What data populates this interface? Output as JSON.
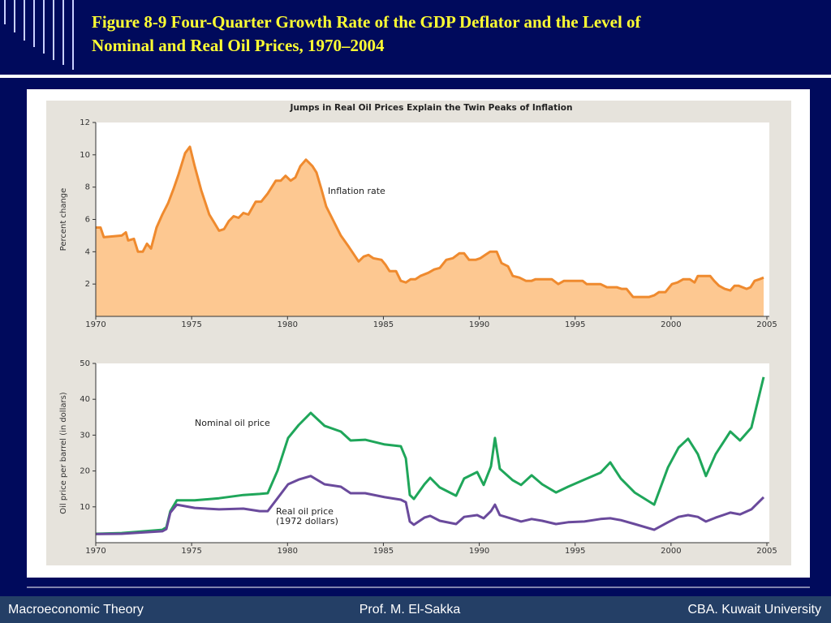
{
  "slide": {
    "title": [
      "Figure 8-9  Four-Quarter Growth Rate of the GDP Deflator and the Level of",
      "Nominal and Real Oil Prices, 1970–2004"
    ],
    "footer": {
      "left": "Macroeconomic Theory",
      "center": "Prof. M. El-Sakka",
      "right": "CBA. Kuwait University"
    }
  },
  "chart_data": [
    {
      "type": "area",
      "title": "Jumps in Real Oil Prices Explain the Twin Peaks of Inflation",
      "y_label": "Percent change",
      "xlim": [
        1970,
        2005
      ],
      "xticks": [
        1970,
        1975,
        1980,
        1985,
        1990,
        1995,
        2000,
        2005
      ],
      "ylim": [
        0,
        12
      ],
      "yticks": [
        2,
        4,
        6,
        8,
        10,
        12
      ],
      "x": [
        1970.0,
        1970.25,
        1970.42,
        1971.35,
        1971.57,
        1971.69,
        1971.99,
        1972.2,
        1972.45,
        1972.67,
        1972.88,
        1973.17,
        1973.47,
        1973.77,
        1974.06,
        1974.32,
        1974.66,
        1974.91,
        1975.16,
        1975.5,
        1975.92,
        1976.18,
        1976.43,
        1976.69,
        1976.94,
        1977.19,
        1977.45,
        1977.7,
        1977.96,
        1978.34,
        1978.63,
        1978.97,
        1979.39,
        1979.65,
        1979.9,
        1980.16,
        1980.41,
        1980.67,
        1980.96,
        1981.3,
        1981.51,
        1981.76,
        1982.02,
        1982.36,
        1982.78,
        1983.2,
        1983.71,
        1983.97,
        1984.22,
        1984.47,
        1984.9,
        1985.11,
        1985.32,
        1985.66,
        1985.91,
        1986.17,
        1986.42,
        1986.67,
        1986.93,
        1987.35,
        1987.65,
        1987.94,
        1988.28,
        1988.62,
        1988.96,
        1989.21,
        1989.47,
        1989.81,
        1990.06,
        1990.31,
        1990.57,
        1990.91,
        1991.16,
        1991.5,
        1991.75,
        1992.09,
        1992.43,
        1992.73,
        1992.94,
        1993.78,
        1994.12,
        1994.42,
        1995.05,
        1995.39,
        1995.6,
        1996.32,
        1996.66,
        1997.17,
        1997.42,
        1997.68,
        1998.02,
        1998.86,
        1999.12,
        1999.37,
        1999.71,
        2000.05,
        2000.34,
        2000.64,
        2000.98,
        2001.23,
        2001.4,
        2001.74,
        2002.04,
        2002.25,
        2002.5,
        2002.8,
        2003.09,
        2003.31,
        2003.52,
        2003.94,
        2004.15,
        2004.36,
        2004.62,
        2004.83
      ],
      "series": [
        {
          "name": "Inflation rate",
          "color": "#ef8a2e",
          "fill": "#fdc891",
          "values": [
            5.5,
            5.5,
            4.9,
            5.0,
            5.2,
            4.7,
            4.8,
            4.0,
            4.0,
            4.5,
            4.2,
            5.5,
            6.3,
            7.0,
            7.9,
            8.8,
            10.1,
            10.5,
            9.3,
            7.8,
            6.3,
            5.8,
            5.3,
            5.4,
            5.9,
            6.2,
            6.1,
            6.4,
            6.3,
            7.1,
            7.1,
            7.6,
            8.4,
            8.4,
            8.7,
            8.4,
            8.6,
            9.3,
            9.7,
            9.3,
            8.9,
            7.9,
            6.8,
            6.0,
            5.0,
            4.3,
            3.4,
            3.7,
            3.8,
            3.6,
            3.5,
            3.2,
            2.8,
            2.8,
            2.2,
            2.1,
            2.3,
            2.3,
            2.5,
            2.7,
            2.9,
            3.0,
            3.5,
            3.6,
            3.9,
            3.9,
            3.5,
            3.5,
            3.6,
            3.8,
            4.0,
            4.0,
            3.3,
            3.1,
            2.5,
            2.4,
            2.2,
            2.2,
            2.3,
            2.3,
            2.0,
            2.2,
            2.2,
            2.2,
            2.0,
            2.0,
            1.8,
            1.8,
            1.7,
            1.7,
            1.2,
            1.2,
            1.3,
            1.5,
            1.5,
            2.0,
            2.1,
            2.3,
            2.3,
            2.1,
            2.5,
            2.5,
            2.5,
            2.2,
            1.9,
            1.7,
            1.6,
            1.9,
            1.9,
            1.7,
            1.8,
            2.2,
            2.3,
            2.4
          ]
        }
      ]
    },
    {
      "type": "line",
      "y_label": "Oil price per barrel (in dollars)",
      "xlim": [
        1970,
        2005
      ],
      "xticks": [
        1970,
        1975,
        1980,
        1985,
        1990,
        1995,
        2000,
        2005
      ],
      "ylim": [
        0,
        50
      ],
      "yticks": [
        10,
        20,
        30,
        40,
        50
      ],
      "annotations": [
        "(1972 dollars)"
      ],
      "x": [
        1970.0,
        1971.35,
        1973.47,
        1973.68,
        1973.89,
        1974.23,
        1975.16,
        1976.43,
        1977.7,
        1978.55,
        1978.97,
        1979.48,
        1980.03,
        1980.58,
        1981.21,
        1981.93,
        1982.78,
        1983.29,
        1984.05,
        1985.07,
        1985.91,
        1986.17,
        1986.38,
        1986.59,
        1987.14,
        1987.44,
        1987.94,
        1988.79,
        1989.21,
        1989.89,
        1990.23,
        1990.61,
        1990.82,
        1991.07,
        1991.75,
        1992.18,
        1992.73,
        1993.28,
        1994.0,
        1994.63,
        1995.48,
        1996.32,
        1996.83,
        1997.38,
        1998.1,
        1999.12,
        1999.84,
        2000.39,
        2000.89,
        2001.4,
        2001.82,
        2002.33,
        2003.09,
        2003.6,
        2004.19,
        2004.83
      ],
      "series": [
        {
          "name": "Nominal oil price",
          "color": "#1fa65a",
          "values": [
            2.5,
            2.7,
            3.6,
            4.3,
            8.8,
            11.8,
            11.8,
            12.4,
            13.3,
            13.6,
            13.8,
            20.1,
            29.2,
            32.8,
            36.2,
            32.6,
            31.0,
            28.5,
            28.7,
            27.4,
            26.9,
            23.5,
            13.3,
            12.2,
            16.3,
            18.1,
            15.4,
            13.1,
            17.9,
            19.7,
            16.1,
            21.3,
            29.2,
            20.6,
            17.4,
            16.1,
            18.8,
            16.3,
            14.0,
            15.6,
            17.6,
            19.5,
            22.4,
            17.9,
            14.0,
            10.6,
            21.0,
            26.5,
            29.0,
            24.7,
            18.6,
            24.7,
            31.0,
            28.5,
            32.1,
            46.2
          ]
        },
        {
          "name": "Real oil price",
          "color": "#6a4a9c",
          "values": [
            2.4,
            2.5,
            3.2,
            3.8,
            8.4,
            10.6,
            9.7,
            9.3,
            9.5,
            8.8,
            8.8,
            12.4,
            16.3,
            17.6,
            18.6,
            16.3,
            15.6,
            13.8,
            13.8,
            12.7,
            12.0,
            11.3,
            5.9,
            5.0,
            7.0,
            7.5,
            6.1,
            5.2,
            7.2,
            7.7,
            6.8,
            8.8,
            10.6,
            7.7,
            6.6,
            5.9,
            6.6,
            6.1,
            5.2,
            5.7,
            5.9,
            6.6,
            6.8,
            6.3,
            5.2,
            3.6,
            5.7,
            7.2,
            7.7,
            7.2,
            5.9,
            7.0,
            8.4,
            7.9,
            9.3,
            12.7
          ]
        }
      ]
    }
  ]
}
